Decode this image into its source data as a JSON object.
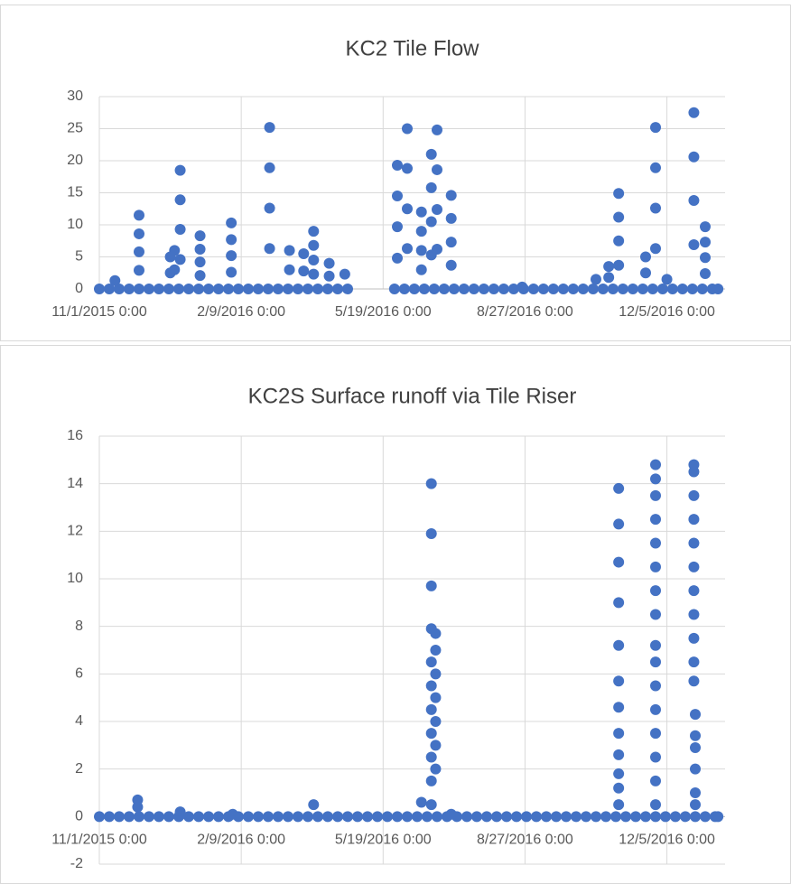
{
  "chart_data": [
    {
      "type": "scatter",
      "title": "KC2 Tile Flow",
      "color": "#4472c4",
      "grid": true,
      "xlim": [
        42309,
        42750
      ],
      "xticks": [
        {
          "value": 42309,
          "label": "11/1/2015 0:00"
        },
        {
          "value": 42409,
          "label": "2/9/2016 0:00"
        },
        {
          "value": 42509,
          "label": "5/19/2016 0:00"
        },
        {
          "value": 42609,
          "label": "8/27/2016 0:00"
        },
        {
          "value": 42709,
          "label": "12/5/2016 0:00"
        }
      ],
      "ylim": [
        0,
        30
      ],
      "yticks": [
        0,
        5,
        10,
        15,
        20,
        25,
        30
      ],
      "x": [
        42309,
        42316,
        42323,
        42330,
        42337,
        42344,
        42351,
        42358,
        42365,
        42372,
        42379,
        42386,
        42393,
        42400,
        42407,
        42414,
        42421,
        42428,
        42435,
        42442,
        42449,
        42456,
        42463,
        42470,
        42477,
        42484,
        42517,
        42524,
        42531,
        42538,
        42545,
        42552,
        42559,
        42566,
        42573,
        42580,
        42587,
        42594,
        42601,
        42608,
        42615,
        42622,
        42629,
        42636,
        42643,
        42650,
        42657,
        42664,
        42671,
        42678,
        42685,
        42692,
        42699,
        42706,
        42713,
        42720,
        42727,
        42734,
        42741,
        42745,
        42320,
        42337,
        42337,
        42337,
        42337,
        42359,
        42359,
        42362,
        42362,
        42366,
        42366,
        42366,
        42366,
        42380,
        42380,
        42380,
        42380,
        42402,
        42402,
        42402,
        42402,
        42429,
        42429,
        42429,
        42429,
        42443,
        42443,
        42453,
        42453,
        42460,
        42460,
        42460,
        42460,
        42471,
        42471,
        42482,
        42519,
        42519,
        42519,
        42519,
        42526,
        42526,
        42526,
        42526,
        42536,
        42536,
        42536,
        42536,
        42543,
        42543,
        42543,
        42543,
        42547,
        42547,
        42547,
        42547,
        42557,
        42557,
        42557,
        42557,
        42607,
        42659,
        42668,
        42668,
        42675,
        42675,
        42675,
        42675,
        42694,
        42694,
        42701,
        42701,
        42701,
        42701,
        42709,
        42728,
        42728,
        42728,
        42728,
        42736,
        42736,
        42736,
        42736
      ],
      "values": [
        0,
        0,
        0,
        0,
        0,
        0,
        0,
        0,
        0,
        0,
        0,
        0,
        0,
        0,
        0,
        0,
        0,
        0,
        0,
        0,
        0,
        0,
        0,
        0,
        0,
        0,
        0,
        0,
        0,
        0,
        0,
        0,
        0,
        0,
        0,
        0,
        0,
        0,
        0,
        0,
        0,
        0,
        0,
        0,
        0,
        0,
        0,
        0,
        0,
        0,
        0,
        0,
        0,
        0,
        0,
        0,
        0,
        0,
        0,
        0,
        1.3,
        11.5,
        8.6,
        5.8,
        2.9,
        5,
        2.5,
        6,
        3,
        18.5,
        13.9,
        9.3,
        4.6,
        8.3,
        6.2,
        4.2,
        2.1,
        10.3,
        7.7,
        5.2,
        2.6,
        25.2,
        18.9,
        12.6,
        6.3,
        6,
        3,
        5.5,
        2.8,
        9,
        6.8,
        4.5,
        2.3,
        4,
        2,
        2.3,
        19.3,
        14.5,
        9.7,
        4.8,
        25,
        18.8,
        12.5,
        6.3,
        12,
        9,
        6,
        3,
        21,
        15.8,
        10.5,
        5.3,
        24.8,
        18.6,
        12.4,
        6.2,
        14.6,
        11,
        7.3,
        3.7,
        0.3,
        1.5,
        3.5,
        1.8,
        14.9,
        11.2,
        7.5,
        3.7,
        5,
        2.5,
        25.2,
        18.9,
        12.6,
        6.3,
        1.5,
        27.5,
        20.6,
        13.8,
        6.9,
        9.7,
        7.3,
        4.9,
        2.4
      ]
    },
    {
      "type": "scatter",
      "title": "KC2S Surface runoff via Tile Riser",
      "color": "#4472c4",
      "grid": true,
      "xlim": [
        42309,
        42750
      ],
      "xticks": [
        {
          "value": 42309,
          "label": "11/1/2015 0:00"
        },
        {
          "value": 42409,
          "label": "2/9/2016 0:00"
        },
        {
          "value": 42509,
          "label": "5/19/2016 0:00"
        },
        {
          "value": 42609,
          "label": "8/27/2016 0:00"
        },
        {
          "value": 42709,
          "label": "12/5/2016 0:00"
        }
      ],
      "ylim": [
        -2,
        16
      ],
      "yticks": [
        -2,
        0,
        2,
        4,
        6,
        8,
        10,
        12,
        14,
        16
      ],
      "x": [
        42309,
        42316,
        42323,
        42330,
        42337,
        42344,
        42351,
        42358,
        42365,
        42372,
        42379,
        42386,
        42393,
        42400,
        42407,
        42414,
        42421,
        42428,
        42435,
        42442,
        42449,
        42456,
        42463,
        42470,
        42477,
        42484,
        42491,
        42498,
        42505,
        42512,
        42519,
        42526,
        42533,
        42540,
        42547,
        42554,
        42561,
        42568,
        42575,
        42582,
        42589,
        42596,
        42603,
        42610,
        42617,
        42624,
        42631,
        42638,
        42645,
        42652,
        42659,
        42666,
        42673,
        42680,
        42687,
        42694,
        42701,
        42708,
        42715,
        42722,
        42729,
        42736,
        42743,
        42745,
        42336,
        42336,
        42366,
        42403,
        42460,
        42536,
        42543,
        42543,
        42543,
        42543,
        42543,
        42543,
        42543,
        42543,
        42543,
        42543,
        42543,
        42546,
        42546,
        42546,
        42546,
        42546,
        42546,
        42546,
        42557,
        42675,
        42675,
        42675,
        42675,
        42675,
        42675,
        42675,
        42675,
        42675,
        42675,
        42675,
        42675,
        42701,
        42701,
        42701,
        42701,
        42701,
        42701,
        42701,
        42701,
        42701,
        42701,
        42701,
        42701,
        42701,
        42701,
        42701,
        42701,
        42728,
        42728,
        42728,
        42728,
        42728,
        42728,
        42728,
        42728,
        42728,
        42728,
        42728,
        42729,
        42729,
        42729,
        42729,
        42729,
        42729
      ],
      "values": [
        0,
        0,
        0,
        0,
        0,
        0,
        0,
        0,
        0,
        0,
        0,
        0,
        0,
        0,
        0,
        0,
        0,
        0,
        0,
        0,
        0,
        0,
        0,
        0,
        0,
        0,
        0,
        0,
        0,
        0,
        0,
        0,
        0,
        0,
        0,
        0,
        0,
        0,
        0,
        0,
        0,
        0,
        0,
        0,
        0,
        0,
        0,
        0,
        0,
        0,
        0,
        0,
        0,
        0,
        0,
        0,
        0,
        0,
        0,
        0,
        0,
        0,
        0,
        0,
        0.7,
        0.4,
        0.2,
        0.1,
        0.5,
        0.6,
        14,
        11.9,
        9.7,
        7.9,
        6.5,
        5.5,
        4.5,
        3.5,
        2.5,
        1.5,
        0.5,
        7.7,
        7,
        6,
        5,
        4,
        3,
        2,
        0.1,
        13.8,
        12.3,
        10.7,
        9,
        7.2,
        5.7,
        4.6,
        3.5,
        2.6,
        1.8,
        1.2,
        0.5,
        14.8,
        14.2,
        13.5,
        12.5,
        11.5,
        10.5,
        9.5,
        8.5,
        7.2,
        6.5,
        5.5,
        4.5,
        3.5,
        2.5,
        1.5,
        0.5,
        14.8,
        14.5,
        13.5,
        12.5,
        11.5,
        10.5,
        9.5,
        8.5,
        7.5,
        6.5,
        5.7,
        4.3,
        3.4,
        2.9,
        2,
        1,
        0.5
      ]
    }
  ]
}
